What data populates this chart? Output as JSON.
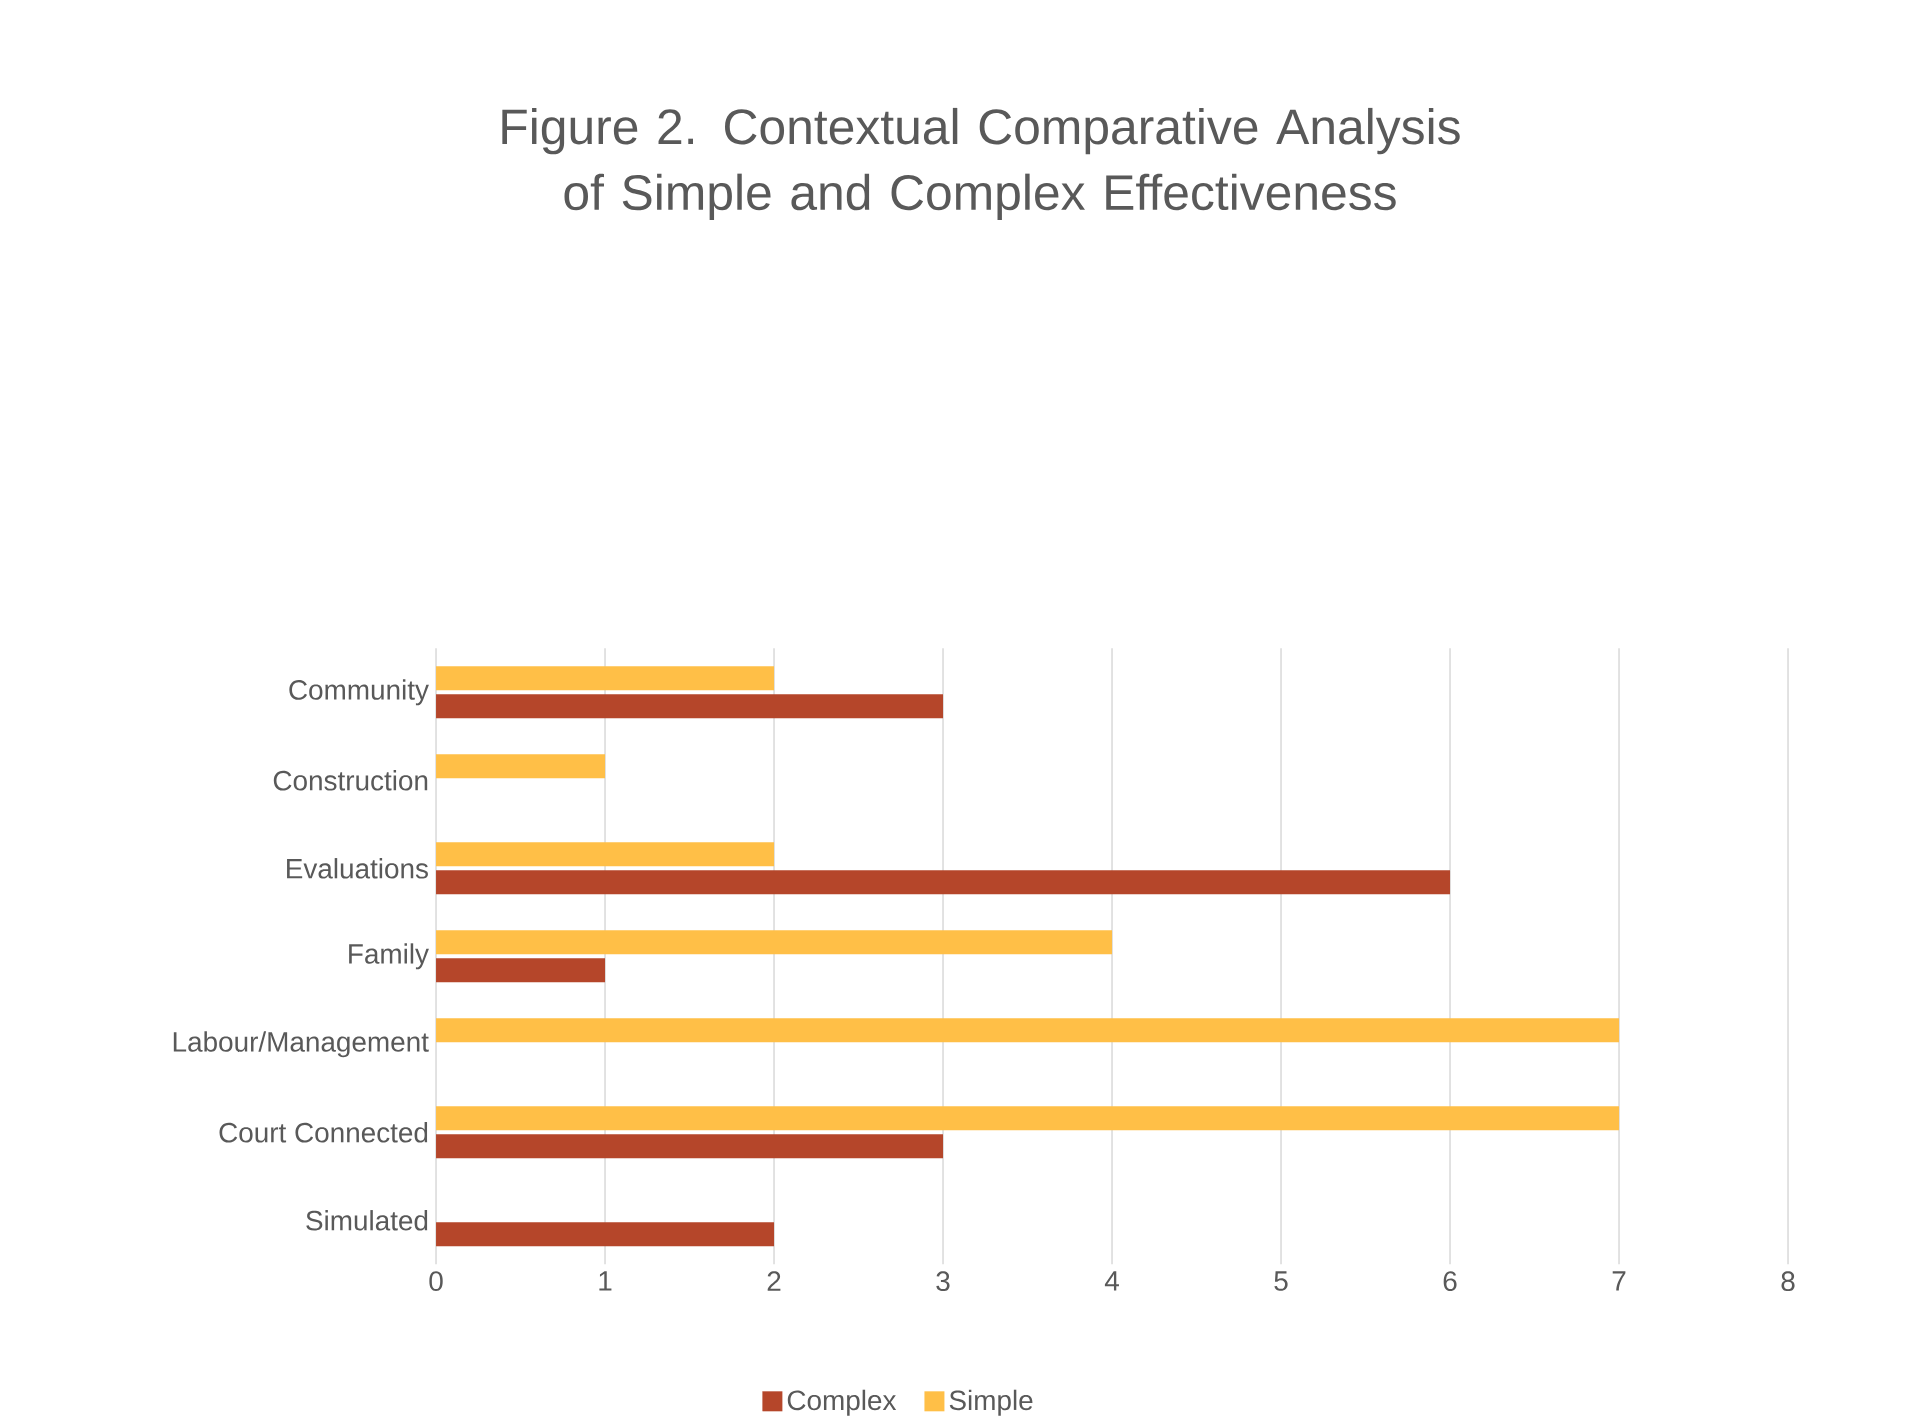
{
  "chart_data": {
    "type": "bar",
    "orientation": "horizontal",
    "title": "Figure 2. Contextual Comparative Analysis of Simple and Complex Effectiveness",
    "categories": [
      "Community",
      "Construction",
      "Evaluations",
      "Family",
      "Labour/Management",
      "Court Connected",
      "Simulated"
    ],
    "series": [
      {
        "name": "Complex",
        "color": "#b5462a",
        "values": [
          3,
          null,
          6,
          1,
          null,
          3,
          2
        ]
      },
      {
        "name": "Simple",
        "color": "#ffbf47",
        "values": [
          2,
          1,
          2,
          4,
          7,
          7,
          null
        ]
      }
    ],
    "xlim": [
      0,
      8
    ],
    "xticks": [
      0,
      1,
      2,
      3,
      4,
      5,
      6,
      7,
      8
    ],
    "grid": "x",
    "legend": "bottom"
  }
}
